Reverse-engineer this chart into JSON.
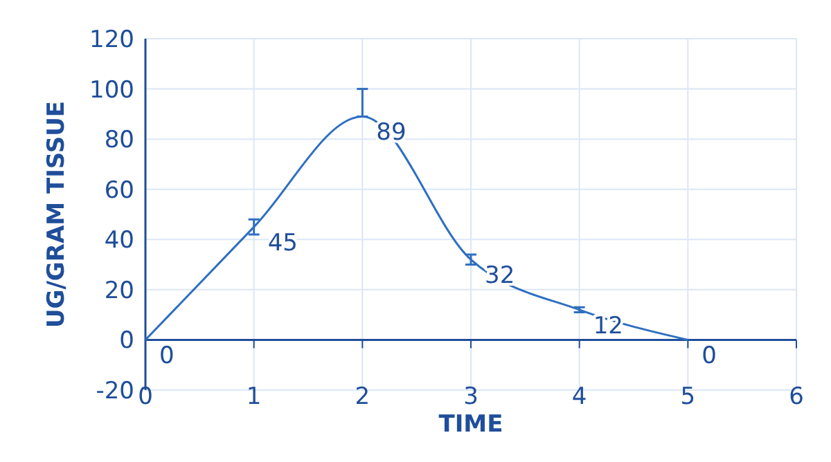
{
  "chart_data": {
    "type": "line",
    "xlabel": "TIME",
    "ylabel": "UG/GRAM TISSUE",
    "x": [
      0,
      1,
      2,
      3,
      4,
      5
    ],
    "series": [
      {
        "color": "#2e6fc0",
        "values": [
          0,
          45,
          89,
          32,
          12,
          0
        ],
        "errors": [
          null,
          3,
          [
            89,
            100
          ],
          2,
          1,
          null
        ]
      }
    ],
    "xlim": [
      0,
      6
    ],
    "xticks": [
      0,
      1,
      2,
      3,
      4,
      5,
      6
    ],
    "ylim": [
      -20,
      120
    ],
    "yticks": [
      -20,
      0,
      20,
      40,
      60,
      80,
      100,
      120
    ],
    "grid": true,
    "data_labels": true,
    "marker": "none",
    "line_style": "solid",
    "ref_lines": [
      {
        "axis": "y",
        "value": 0,
        "color": "#1f4e9a"
      }
    ]
  }
}
